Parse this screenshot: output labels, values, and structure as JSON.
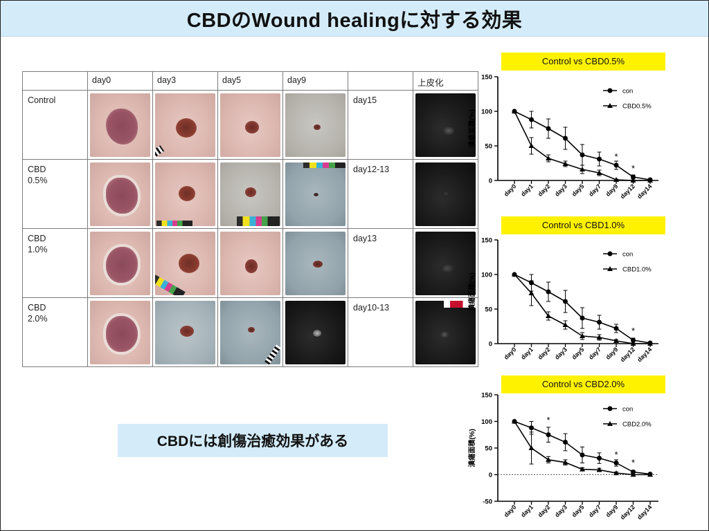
{
  "title": "CBDのWound healingに対する効果",
  "conclusion": "CBDには創傷治癒効果がある",
  "table": {
    "headers": [
      "",
      "day0",
      "day3",
      "day5",
      "day9",
      "",
      "上皮化"
    ],
    "rows": [
      {
        "label_line1": "Control",
        "label_line2": "",
        "epi_day": "day15",
        "photos": [
          "skin-large",
          "skin-med",
          "skin-small",
          "gray-tiny"
        ]
      },
      {
        "label_line1": "CBD",
        "label_line2": "0.5%",
        "epi_day": "day12-13",
        "photos": [
          "skin-large-ring",
          "skin-med-ruler",
          "gray-small-ruler",
          "blue-dot-ruler"
        ]
      },
      {
        "label_line1": "CBD",
        "label_line2": "1.0%",
        "epi_day": "day13",
        "photos": [
          "skin-large-ring",
          "skin-med-ruler",
          "skin-small",
          "blue-tiny"
        ]
      },
      {
        "label_line1": "CBD",
        "label_line2": "2.0%",
        "epi_day": "day10-13",
        "photos": [
          "skin-large",
          "blue-small",
          "blue-tiny-ruler",
          "black-glow"
        ]
      }
    ]
  },
  "chart_data": [
    {
      "type": "line",
      "title": "Control vs CBD0.5%",
      "ylabel": "潰瘍面積(%)",
      "xlabel": "",
      "categories": [
        "day0",
        "day1",
        "day2",
        "day3",
        "day5",
        "day7",
        "day9",
        "day12",
        "day14"
      ],
      "ylim": [
        0,
        150
      ],
      "yticks": [
        0,
        50,
        100,
        150
      ],
      "series": [
        {
          "name": "con",
          "marker": "circle",
          "values": [
            100,
            88,
            75,
            61,
            37,
            31,
            22,
            5,
            1
          ],
          "errors": [
            0,
            12,
            14,
            16,
            15,
            10,
            6,
            3,
            1
          ]
        },
        {
          "name": "CBD0.5%",
          "marker": "triangle",
          "values": [
            100,
            50,
            32,
            24,
            16,
            11,
            1,
            0,
            0
          ],
          "errors": [
            0,
            12,
            5,
            4,
            6,
            4,
            1,
            0,
            0
          ]
        }
      ],
      "annotations": [
        {
          "x": "day9",
          "y": 34,
          "text": "*"
        },
        {
          "x": "day12",
          "y": 17,
          "text": "*"
        }
      ],
      "legend": "top-right",
      "zero_line": false
    },
    {
      "type": "line",
      "title": "Control vs CBD1.0%",
      "ylabel": "潰瘍面積(%)",
      "xlabel": "",
      "categories": [
        "day0",
        "day1",
        "day2",
        "day3",
        "day5",
        "day7",
        "day9",
        "day12",
        "day14"
      ],
      "ylim": [
        0,
        150
      ],
      "yticks": [
        0,
        50,
        100,
        150
      ],
      "series": [
        {
          "name": "con",
          "marker": "circle",
          "values": [
            100,
            88,
            75,
            61,
            37,
            31,
            22,
            5,
            1
          ],
          "errors": [
            0,
            12,
            14,
            16,
            15,
            10,
            6,
            3,
            1
          ]
        },
        {
          "name": "CBD1.0%",
          "marker": "triangle",
          "values": [
            100,
            73,
            40,
            27,
            11,
            9,
            4,
            0,
            0
          ],
          "errors": [
            0,
            18,
            6,
            6,
            5,
            4,
            2,
            0,
            0
          ]
        }
      ],
      "annotations": [
        {
          "x": "day12",
          "y": 18,
          "text": "*"
        }
      ],
      "legend": "top-right",
      "zero_line": false
    },
    {
      "type": "line",
      "title": "Control vs CBD2.0%",
      "ylabel": "潰瘍面積(%)",
      "xlabel": "",
      "categories": [
        "day0",
        "day1",
        "day2",
        "day3",
        "day5",
        "day7",
        "day9",
        "day12",
        "day14"
      ],
      "ylim": [
        -50,
        150
      ],
      "yticks": [
        -50,
        0,
        50,
        100,
        150
      ],
      "series": [
        {
          "name": "con",
          "marker": "circle",
          "values": [
            100,
            88,
            75,
            61,
            37,
            31,
            22,
            5,
            1
          ],
          "errors": [
            0,
            12,
            14,
            16,
            15,
            10,
            6,
            3,
            1
          ]
        },
        {
          "name": "CBD2.0%",
          "marker": "triangle",
          "values": [
            100,
            50,
            28,
            23,
            10,
            9,
            3,
            0,
            0
          ],
          "errors": [
            0,
            30,
            6,
            5,
            3,
            3,
            2,
            0,
            0
          ]
        }
      ],
      "annotations": [
        {
          "x": "day2",
          "y": 102,
          "text": "*"
        },
        {
          "x": "day9",
          "y": 37,
          "text": "*"
        },
        {
          "x": "day12",
          "y": 22,
          "text": "*"
        }
      ],
      "legend": "top-right",
      "zero_line": true
    }
  ]
}
